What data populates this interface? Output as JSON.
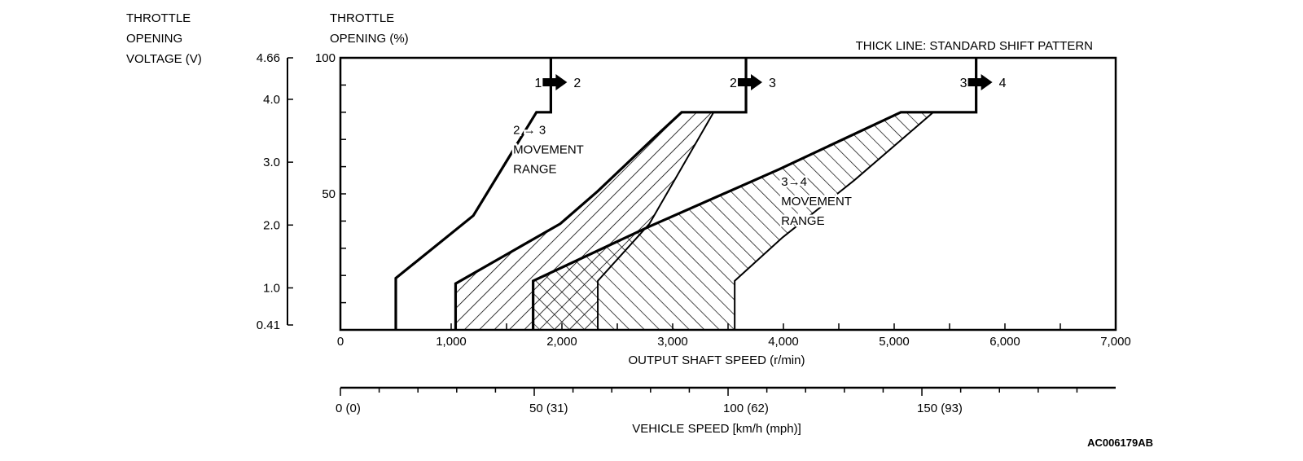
{
  "chart_data": {
    "type": "line",
    "title_note": "THICK LINE: STANDARD SHIFT PATTERN",
    "y_left_title": [
      "THROTTLE",
      "OPENING",
      "VOLTAGE (V)"
    ],
    "y_right_title": [
      "THROTTLE",
      "OPENING (%)"
    ],
    "xlabel": "OUTPUT SHAFT SPEED (r/min)",
    "xlim": [
      0,
      7000
    ],
    "ylim": [
      0,
      100
    ],
    "x_ticks": [
      0,
      1000,
      2000,
      3000,
      4000,
      5000,
      6000,
      7000
    ],
    "x_tick_labels": [
      "0",
      "1,000",
      "2,000",
      "3,000",
      "4,000",
      "5,000",
      "6,000",
      "7,000"
    ],
    "y_ticks": [
      100,
      50
    ],
    "y_tick_labels": [
      "100",
      "50"
    ],
    "voltage_range": [
      0.41,
      4.66
    ],
    "voltage_ticks": [
      4.66,
      4.0,
      3.0,
      2.0,
      1.0,
      0.41
    ],
    "voltage_tick_labels": [
      "4.66",
      "4.0",
      "3.0",
      "2.0",
      "1.0",
      "0.41"
    ],
    "vehicle_speed_axis": {
      "label": "VEHICLE SPEED [km/h (mph)]",
      "range_kmh": [
        0,
        190
      ],
      "kmh_per_rpm": 0.02857,
      "ticks": [
        0,
        50,
        100,
        150
      ],
      "tick_labels": [
        "0 (0)",
        "50 (31)",
        "100 (62)",
        "150 (93)"
      ]
    },
    "series": [
      {
        "name": "1→2 standard shift",
        "style": "thick",
        "points": [
          [
            500,
            0
          ],
          [
            500,
            19
          ],
          [
            1200,
            42
          ],
          [
            1770,
            80
          ],
          [
            1900,
            80
          ],
          [
            1900,
            100
          ]
        ]
      },
      {
        "name": "2→3 standard shift",
        "style": "thick",
        "points": [
          [
            1040,
            0
          ],
          [
            1040,
            17
          ],
          [
            1985,
            39
          ],
          [
            2324,
            51
          ],
          [
            2816,
            70
          ],
          [
            3081,
            80
          ],
          [
            3662,
            80
          ],
          [
            3662,
            100
          ]
        ]
      },
      {
        "name": "3→4 standard shift",
        "style": "thick",
        "points": [
          [
            1740,
            0
          ],
          [
            1740,
            18
          ],
          [
            2790,
            38
          ],
          [
            3960,
            59
          ],
          [
            5060,
            80
          ],
          [
            5740,
            80
          ],
          [
            5740,
            100
          ]
        ]
      },
      {
        "name": "2→3 movement range limit",
        "style": "thin",
        "points": [
          [
            3370,
            80
          ],
          [
            2790,
            39
          ],
          [
            2324,
            18
          ],
          [
            2324,
            0
          ]
        ]
      },
      {
        "name": "3→4 movement range limit",
        "style": "thin",
        "points": [
          [
            5353,
            80
          ],
          [
            4640,
            55
          ],
          [
            3993,
            34
          ],
          [
            3560,
            18
          ],
          [
            3560,
            0
          ]
        ]
      }
    ],
    "shift_labels": [
      {
        "from": "1",
        "to": "2",
        "rpm": 1900
      },
      {
        "from": "2",
        "to": "3",
        "rpm": 3662
      },
      {
        "from": "3",
        "to": "4",
        "rpm": 5740
      }
    ],
    "annotations": [
      {
        "lines": [
          "2 → 3",
          "MOVEMENT",
          "RANGE"
        ],
        "rpm": 1560,
        "pct": 72
      },
      {
        "lines": [
          "3→4",
          "MOVEMENT",
          "RANGE"
        ],
        "rpm": 3980,
        "pct": 53
      }
    ],
    "figure_id": "AC006179AB"
  }
}
